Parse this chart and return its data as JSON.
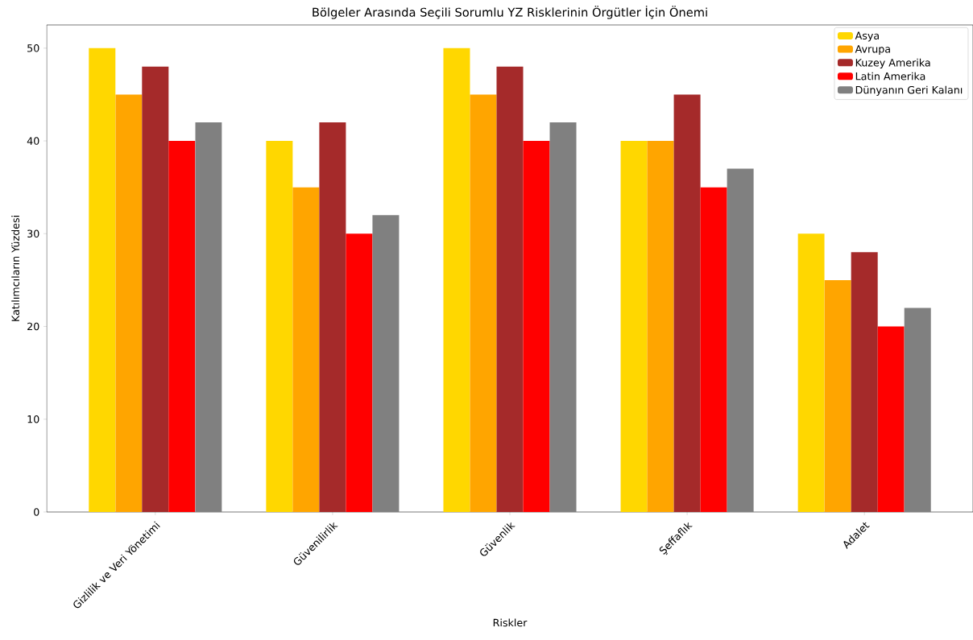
{
  "chart_data": {
    "type": "bar",
    "title": "Bölgeler Arasında Seçili Sorumlu YZ Risklerinin Örgütler İçin Önemi",
    "xlabel": "Riskler",
    "ylabel": "Katılımcıların Yüzdesi",
    "categories": [
      "Gizlilik ve Veri Yönetimi",
      "Güvenilirlik",
      "Güvenlik",
      "Şeffaflık",
      "Adalet"
    ],
    "series": [
      {
        "name": "Asya",
        "color": "#ffd700",
        "values": [
          50,
          40,
          50,
          40,
          30
        ]
      },
      {
        "name": "Avrupa",
        "color": "#ffa500",
        "values": [
          45,
          35,
          45,
          40,
          25
        ]
      },
      {
        "name": "Kuzey Amerika",
        "color": "#a52a2a",
        "values": [
          48,
          42,
          48,
          45,
          28
        ]
      },
      {
        "name": "Latin Amerika",
        "color": "#ff0000",
        "values": [
          40,
          30,
          40,
          35,
          20
        ]
      },
      {
        "name": "Dünyanın Geri Kalanı",
        "color": "#808080",
        "values": [
          42,
          32,
          42,
          37,
          22
        ]
      }
    ],
    "ylim": [
      0,
      52.5
    ],
    "yticks": [
      0,
      10,
      20,
      30,
      40,
      50
    ],
    "grid": false,
    "legend": "top right"
  }
}
